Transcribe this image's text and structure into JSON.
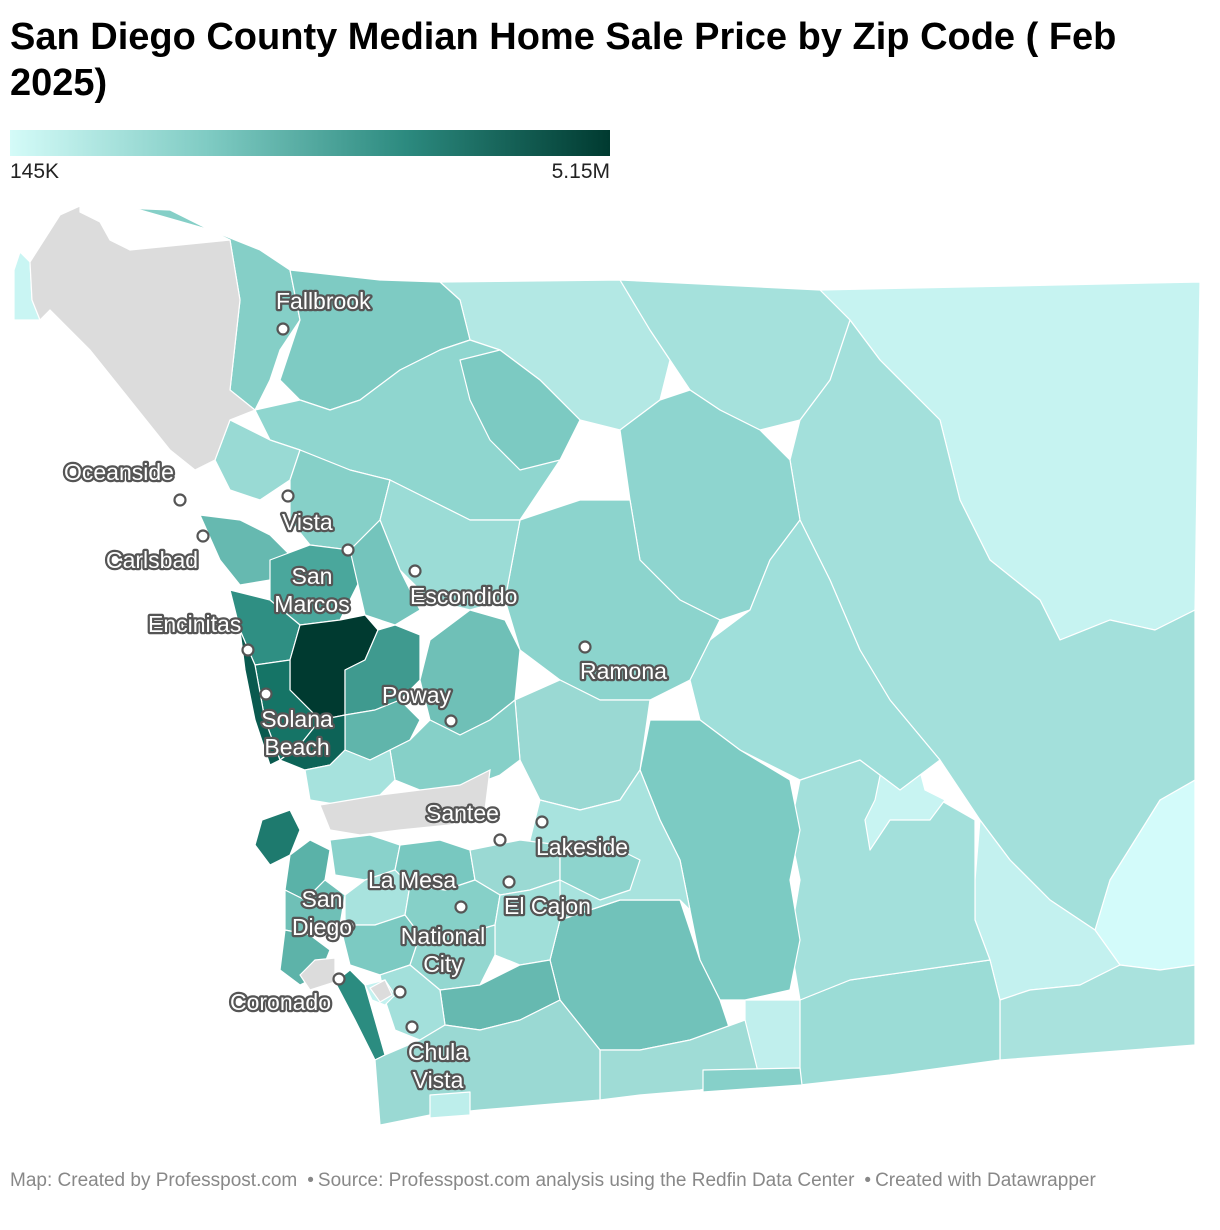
{
  "title": "San Diego County Median Home Sale Price by Zip Code ( Feb 2025)",
  "legend": {
    "min_label": "145K",
    "max_label": "5.15M",
    "color_min": "#d4fbf8",
    "color_max": "#003a30"
  },
  "colors": {
    "no_data": "#dcdcdc",
    "border": "#ffffff",
    "label_outline": "#555555"
  },
  "cities": [
    {
      "name": "Fallbrook",
      "lines": [
        "Fallbrook"
      ]
    },
    {
      "name": "Oceanside",
      "lines": [
        "Oceanside"
      ]
    },
    {
      "name": "Vista",
      "lines": [
        "Vista"
      ]
    },
    {
      "name": "Carlsbad",
      "lines": [
        "Carlsbad"
      ]
    },
    {
      "name": "San Marcos",
      "lines": [
        "San",
        "Marcos"
      ]
    },
    {
      "name": "Escondido",
      "lines": [
        "Escondido"
      ]
    },
    {
      "name": "Encinitas",
      "lines": [
        "Encinitas"
      ]
    },
    {
      "name": "Ramona",
      "lines": [
        "Ramona"
      ]
    },
    {
      "name": "Poway",
      "lines": [
        "Poway"
      ]
    },
    {
      "name": "Solana Beach",
      "lines": [
        "Solana",
        "Beach"
      ]
    },
    {
      "name": "Santee",
      "lines": [
        "Santee"
      ]
    },
    {
      "name": "Lakeside",
      "lines": [
        "Lakeside"
      ]
    },
    {
      "name": "La Mesa",
      "lines": [
        "La Mesa"
      ]
    },
    {
      "name": "El Cajon",
      "lines": [
        "El Cajon"
      ]
    },
    {
      "name": "San Diego",
      "lines": [
        "San",
        "Diego"
      ]
    },
    {
      "name": "National City",
      "lines": [
        "National",
        "City"
      ]
    },
    {
      "name": "Coronado",
      "lines": [
        "Coronado"
      ]
    },
    {
      "name": "Chula Vista",
      "lines": [
        "Chula",
        "Vista"
      ]
    }
  ],
  "footer": {
    "map_credit": "Map: Created by Professpost.com",
    "source": "Source: Professpost.com analysis using the Redfin Data Center",
    "tool": "Created with Datawrapper"
  }
}
